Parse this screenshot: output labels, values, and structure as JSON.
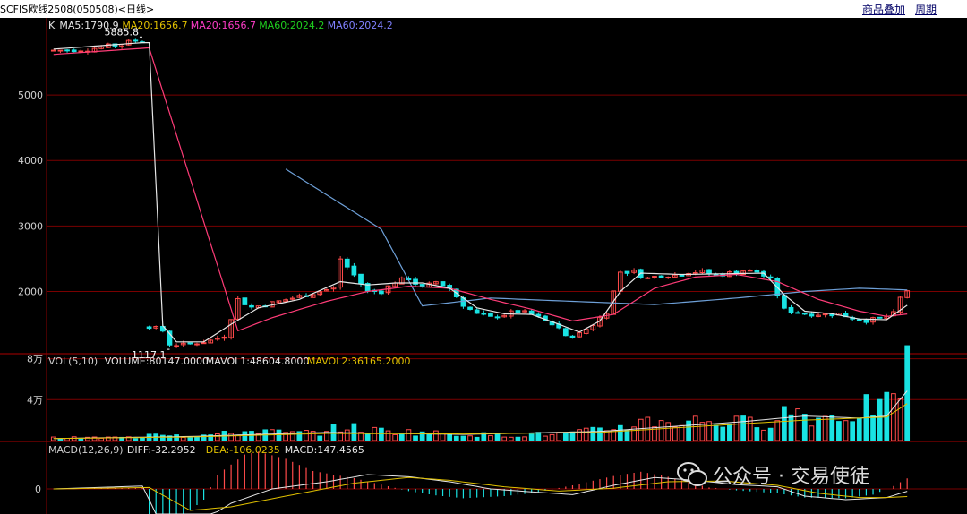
{
  "header": {
    "title": "SCFIS欧线2508(050508)<日线>",
    "overlay_button": "商品叠加",
    "period_button": "周期"
  },
  "watermark": {
    "text": "公众号 · 交易使徒"
  },
  "colors": {
    "background": "#000000",
    "grid": "#7a0000",
    "up": "#ff4a4a",
    "down": "#19e3e3",
    "ma5": "#e6e6e6",
    "ma20": "#ff3c78",
    "ma60": "#6ea0d8",
    "axis_text": "#cfcfcf"
  },
  "chart_data": [
    {
      "type": "candlestick",
      "panel": "price",
      "legend": [
        {
          "text": "K",
          "color": "#e6e6e6"
        },
        {
          "text": "MA5:1790.9",
          "color": "#e6e6e6"
        },
        {
          "text": "MA20:1656.7",
          "color": "#e0c000"
        },
        {
          "text": "MA20:1656.7",
          "color": "#ff3cc8"
        },
        {
          "text": "MA60:2024.2",
          "color": "#1fcf1f"
        },
        {
          "text": "MA60:2024.2",
          "color": "#8080ff"
        }
      ],
      "y_ticks": [
        2000,
        3000,
        4000,
        5000
      ],
      "y_tick_labels": [
        "2000",
        "3000",
        "4000",
        "5000"
      ],
      "ylim": [
        1050,
        6150
      ],
      "x_count": 134,
      "annotations": [
        {
          "text": "5885.8",
          "x": 13,
          "y": 5885.8,
          "side": "left"
        },
        {
          "text": "1117.1",
          "x": 17,
          "y": 1117.1,
          "side": "left"
        }
      ],
      "anchors": [
        [
          0,
          5680
        ],
        [
          5,
          5700
        ],
        [
          9,
          5760
        ],
        [
          12,
          5830
        ],
        [
          13,
          5820
        ],
        [
          14,
          1470
        ],
        [
          16,
          1400
        ],
        [
          17,
          1200
        ],
        [
          19,
          1180
        ],
        [
          21,
          1220
        ],
        [
          23,
          1250
        ],
        [
          25,
          1330
        ],
        [
          27,
          1880
        ],
        [
          29,
          1760
        ],
        [
          31,
          1800
        ],
        [
          33,
          1850
        ],
        [
          35,
          1900
        ],
        [
          37,
          1950
        ],
        [
          39,
          2000
        ],
        [
          41,
          2050
        ],
        [
          42,
          2500
        ],
        [
          44,
          2250
        ],
        [
          46,
          2000
        ],
        [
          48,
          2000
        ],
        [
          50,
          2150
        ],
        [
          52,
          2200
        ],
        [
          54,
          2050
        ],
        [
          56,
          2150
        ],
        [
          58,
          2050
        ],
        [
          60,
          1800
        ],
        [
          62,
          1650
        ],
        [
          64,
          1600
        ],
        [
          66,
          1650
        ],
        [
          68,
          1700
        ],
        [
          70,
          1650
        ],
        [
          72,
          1550
        ],
        [
          74,
          1450
        ],
        [
          75,
          1300
        ],
        [
          77,
          1350
        ],
        [
          79,
          1500
        ],
        [
          81,
          1700
        ],
        [
          83,
          2300
        ],
        [
          85,
          2300
        ],
        [
          87,
          2200
        ],
        [
          89,
          2250
        ],
        [
          91,
          2250
        ],
        [
          93,
          2300
        ],
        [
          95,
          2300
        ],
        [
          97,
          2250
        ],
        [
          99,
          2280
        ],
        [
          101,
          2320
        ],
        [
          103,
          2300
        ],
        [
          105,
          2180
        ],
        [
          107,
          1720
        ],
        [
          109,
          1680
        ],
        [
          111,
          1660
        ],
        [
          113,
          1650
        ],
        [
          115,
          1660
        ],
        [
          117,
          1600
        ],
        [
          119,
          1560
        ],
        [
          121,
          1580
        ],
        [
          123,
          1660
        ],
        [
          124,
          1900
        ],
        [
          125,
          2020
        ]
      ],
      "ma5_anchors": [
        [
          0,
          5700
        ],
        [
          13,
          5800
        ],
        [
          14,
          5800
        ],
        [
          16,
          1480
        ],
        [
          18,
          1230
        ],
        [
          22,
          1230
        ],
        [
          26,
          1500
        ],
        [
          30,
          1750
        ],
        [
          36,
          1880
        ],
        [
          42,
          2150
        ],
        [
          46,
          2100
        ],
        [
          50,
          2130
        ],
        [
          54,
          2130
        ],
        [
          58,
          2050
        ],
        [
          62,
          1750
        ],
        [
          66,
          1660
        ],
        [
          70,
          1650
        ],
        [
          74,
          1500
        ],
        [
          77,
          1380
        ],
        [
          80,
          1550
        ],
        [
          83,
          2000
        ],
        [
          86,
          2280
        ],
        [
          92,
          2260
        ],
        [
          98,
          2270
        ],
        [
          104,
          2280
        ],
        [
          107,
          1950
        ],
        [
          110,
          1700
        ],
        [
          114,
          1660
        ],
        [
          118,
          1580
        ],
        [
          122,
          1570
        ],
        [
          125,
          1790
        ]
      ],
      "ma20_anchors": [
        [
          0,
          5620
        ],
        [
          14,
          5720
        ],
        [
          27,
          1400
        ],
        [
          32,
          1600
        ],
        [
          40,
          1850
        ],
        [
          46,
          2000
        ],
        [
          52,
          2080
        ],
        [
          58,
          2050
        ],
        [
          64,
          1880
        ],
        [
          70,
          1730
        ],
        [
          76,
          1550
        ],
        [
          82,
          1650
        ],
        [
          88,
          2050
        ],
        [
          94,
          2220
        ],
        [
          100,
          2260
        ],
        [
          106,
          2150
        ],
        [
          112,
          1880
        ],
        [
          118,
          1700
        ],
        [
          122,
          1620
        ],
        [
          125,
          1657
        ]
      ],
      "ma60_anchors": [
        [
          34,
          3870
        ],
        [
          48,
          2950
        ],
        [
          54,
          1780
        ],
        [
          64,
          1900
        ],
        [
          76,
          1850
        ],
        [
          88,
          1800
        ],
        [
          100,
          1900
        ],
        [
          110,
          2000
        ],
        [
          118,
          2050
        ],
        [
          125,
          2024
        ]
      ]
    },
    {
      "type": "bar",
      "panel": "volume",
      "legend": [
        {
          "text": "VOL(5,10)",
          "color": "#cfcfcf"
        },
        {
          "text": "VOLUME:80147.0000",
          "color": "#e6e6e6"
        },
        {
          "text": "MAVOL1:48604.8000",
          "color": "#e6e6e6"
        },
        {
          "text": "MAVOL2:36165.2000",
          "color": "#e0c000"
        }
      ],
      "y_tick_labels": [
        "4万",
        "8万"
      ],
      "y_ticks": [
        40000,
        80000
      ],
      "ylim": [
        0,
        84000
      ],
      "anchors": [
        [
          0,
          2500
        ],
        [
          13,
          3000
        ],
        [
          14,
          9000
        ],
        [
          20,
          4000
        ],
        [
          26,
          7000
        ],
        [
          30,
          10000
        ],
        [
          34,
          7000
        ],
        [
          40,
          8000
        ],
        [
          42,
          14000
        ],
        [
          46,
          10000
        ],
        [
          50,
          9000
        ],
        [
          56,
          7000
        ],
        [
          60,
          6000
        ],
        [
          66,
          5000
        ],
        [
          72,
          6000
        ],
        [
          76,
          7000
        ],
        [
          80,
          10000
        ],
        [
          84,
          15000
        ],
        [
          88,
          20000
        ],
        [
          92,
          18000
        ],
        [
          96,
          20000
        ],
        [
          100,
          17000
        ],
        [
          104,
          18000
        ],
        [
          108,
          30000
        ],
        [
          112,
          22000
        ],
        [
          116,
          25000
        ],
        [
          120,
          34000
        ],
        [
          123,
          32000
        ],
        [
          124,
          62000
        ],
        [
          125,
          80147
        ]
      ],
      "mavol1_anchors": [
        [
          0,
          2000
        ],
        [
          20,
          4000
        ],
        [
          40,
          8000
        ],
        [
          60,
          6000
        ],
        [
          80,
          9000
        ],
        [
          100,
          18000
        ],
        [
          110,
          24000
        ],
        [
          118,
          22000
        ],
        [
          122,
          24000
        ],
        [
          125,
          48605
        ]
      ],
      "mavol2_anchors": [
        [
          0,
          2000
        ],
        [
          20,
          3500
        ],
        [
          40,
          7000
        ],
        [
          60,
          6500
        ],
        [
          80,
          8000
        ],
        [
          100,
          16000
        ],
        [
          110,
          20000
        ],
        [
          118,
          22000
        ],
        [
          122,
          23000
        ],
        [
          125,
          36165
        ]
      ]
    },
    {
      "type": "bar",
      "panel": "macd",
      "legend": [
        {
          "text": "MACD(12,26,9)",
          "color": "#cfcfcf"
        },
        {
          "text": "DIFF:-32.2952",
          "color": "#e6e6e6"
        },
        {
          "text": "DEA:-106.0235",
          "color": "#e0c000"
        },
        {
          "text": "MACD:147.4565",
          "color": "#e6e6e6"
        }
      ],
      "y_ticks": [
        0
      ],
      "y_tick_labels": [
        "0"
      ],
      "ylim": [
        -350,
        650
      ],
      "hist_anchors": [
        [
          0,
          0
        ],
        [
          13,
          20
        ],
        [
          14,
          -600
        ],
        [
          17,
          -500
        ],
        [
          20,
          -300
        ],
        [
          22,
          -150
        ],
        [
          24,
          200
        ],
        [
          28,
          480
        ],
        [
          30,
          520
        ],
        [
          34,
          420
        ],
        [
          38,
          250
        ],
        [
          44,
          150
        ],
        [
          48,
          60
        ],
        [
          52,
          -30
        ],
        [
          56,
          -90
        ],
        [
          60,
          -130
        ],
        [
          66,
          -100
        ],
        [
          70,
          -60
        ],
        [
          76,
          50
        ],
        [
          82,
          180
        ],
        [
          86,
          240
        ],
        [
          90,
          170
        ],
        [
          96,
          20
        ],
        [
          100,
          -20
        ],
        [
          106,
          -60
        ],
        [
          110,
          -120
        ],
        [
          116,
          -130
        ],
        [
          120,
          -80
        ],
        [
          123,
          40
        ],
        [
          125,
          147
        ]
      ],
      "diff_anchors": [
        [
          0,
          0
        ],
        [
          13,
          40
        ],
        [
          14,
          -150
        ],
        [
          16,
          -600
        ],
        [
          20,
          -550
        ],
        [
          26,
          -200
        ],
        [
          32,
          0
        ],
        [
          40,
          100
        ],
        [
          46,
          200
        ],
        [
          52,
          170
        ],
        [
          58,
          100
        ],
        [
          64,
          0
        ],
        [
          70,
          -40
        ],
        [
          76,
          -80
        ],
        [
          82,
          50
        ],
        [
          88,
          160
        ],
        [
          94,
          120
        ],
        [
          100,
          60
        ],
        [
          106,
          30
        ],
        [
          110,
          -100
        ],
        [
          116,
          -150
        ],
        [
          122,
          -120
        ],
        [
          125,
          -32
        ]
      ],
      "dea_anchors": [
        [
          0,
          0
        ],
        [
          14,
          20
        ],
        [
          20,
          -300
        ],
        [
          26,
          -250
        ],
        [
          34,
          -100
        ],
        [
          44,
          80
        ],
        [
          52,
          160
        ],
        [
          58,
          120
        ],
        [
          66,
          30
        ],
        [
          74,
          -30
        ],
        [
          82,
          10
        ],
        [
          90,
          100
        ],
        [
          98,
          110
        ],
        [
          106,
          50
        ],
        [
          112,
          -60
        ],
        [
          118,
          -120
        ],
        [
          122,
          -120
        ],
        [
          125,
          -106
        ]
      ]
    }
  ]
}
